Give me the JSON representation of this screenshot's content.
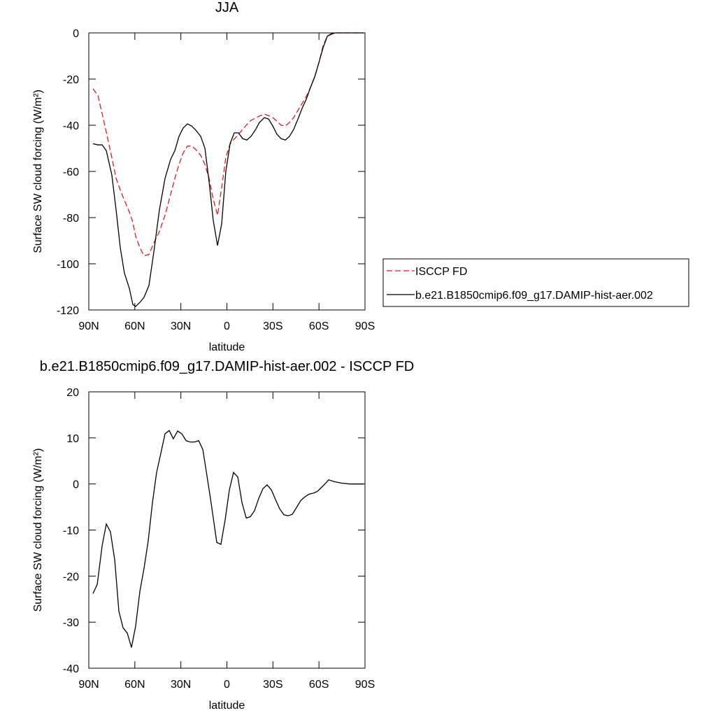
{
  "chart_data": [
    {
      "type": "line",
      "title": "JJA",
      "x_label": "latitude",
      "y_label": "Surface SW cloud forcing (W/m²)",
      "xlim": [
        90,
        -90
      ],
      "ylim": [
        -120,
        0
      ],
      "xticks": [
        {
          "value": 90,
          "label": "90N"
        },
        {
          "value": 60,
          "label": "60N"
        },
        {
          "value": 30,
          "label": "30N"
        },
        0,
        {
          "value": -30,
          "label": "30S"
        },
        {
          "value": -60,
          "label": "60S"
        },
        {
          "value": -90,
          "label": "90S"
        }
      ],
      "yticks": [
        -120,
        -100,
        -80,
        -60,
        -40,
        -20,
        0
      ],
      "legend": "right",
      "x": [
        87.3,
        84.1,
        81.3,
        78.6,
        75,
        72.2,
        69.5,
        66.8,
        63.6,
        61.3,
        59.5,
        56.7,
        54,
        50.8,
        47.6,
        44,
        40.3,
        36.7,
        33.9,
        31.2,
        28.5,
        25.7,
        23,
        20.3,
        17.1,
        14.3,
        11.6,
        8.9,
        6.1,
        3.4,
        0.7,
        -2.1,
        -4.8,
        -7.5,
        -10.3,
        -13,
        -15.7,
        -18.5,
        -21.2,
        -24.4,
        -27.1,
        -29.9,
        -32.6,
        -35.3,
        -38.1,
        -40.8,
        -43.5,
        -46.3,
        -49,
        -51.7,
        -54.5,
        -57.2,
        -59.9,
        -62.7,
        -65.4,
        -68.2,
        -70.9,
        -80,
        -89.1
      ],
      "series": [
        {
          "name": "ISCCP FD",
          "color": "#e8161b",
          "line_style": "dashed",
          "values": [
            -24.2,
            -27,
            -35,
            -43,
            -54,
            -63,
            -68,
            -72.5,
            -77.5,
            -82,
            -88,
            -93,
            -96.5,
            -96,
            -91,
            -86,
            -79,
            -70,
            -63,
            -57,
            -52,
            -49,
            -49,
            -50.5,
            -53,
            -57,
            -63,
            -72,
            -79,
            -67,
            -54,
            -48,
            -46,
            -44,
            -41.8,
            -39.7,
            -37.9,
            -37,
            -36,
            -35.2,
            -35.8,
            -36.7,
            -38.2,
            -40,
            -40.3,
            -38.8,
            -36.7,
            -33.6,
            -30.6,
            -27.6,
            -23.6,
            -19.1,
            -13,
            -5.5,
            -1.5,
            -0.6,
            0,
            0,
            0
          ]
        },
        {
          "name": "b.e21.B1850cmip6.f09_g17.DAMIP-hist-aer.002",
          "color": "#000000",
          "line_style": "solid",
          "values": [
            -48,
            -48.5,
            -48.5,
            -51,
            -61.5,
            -76.7,
            -93,
            -104,
            -110.6,
            -117.6,
            -118.5,
            -116.7,
            -114.5,
            -109.4,
            -94.8,
            -76.7,
            -63,
            -54.8,
            -51,
            -44.8,
            -41.2,
            -39.4,
            -40.3,
            -42.1,
            -44.8,
            -50,
            -64.5,
            -81.2,
            -92.1,
            -82.7,
            -60,
            -47.9,
            -43.3,
            -43.3,
            -45.8,
            -46.4,
            -44.8,
            -42.1,
            -38.8,
            -36.7,
            -37.3,
            -40.3,
            -43.9,
            -45.8,
            -46.4,
            -44.8,
            -41.8,
            -37.3,
            -32.7,
            -28.8,
            -23.6,
            -19.1,
            -13,
            -6.4,
            -1.5,
            -0.3,
            0,
            0,
            0
          ]
        }
      ]
    },
    {
      "type": "line",
      "title": "b.e21.B1850cmip6.f09_g17.DAMIP-hist-aer.002 - ISCCP FD",
      "x_label": "latitude",
      "y_label": "Surface SW cloud forcing (W/m²)",
      "xlim": [
        90,
        -90
      ],
      "ylim": [
        -40,
        20
      ],
      "xticks": [
        {
          "value": 90,
          "label": "90N"
        },
        {
          "value": 60,
          "label": "60N"
        },
        {
          "value": 30,
          "label": "30N"
        },
        0,
        {
          "value": -30,
          "label": "30S"
        },
        {
          "value": -60,
          "label": "60S"
        },
        {
          "value": -90,
          "label": "90S"
        }
      ],
      "yticks": [
        -40,
        -30,
        -20,
        -10,
        0,
        10,
        20
      ],
      "color": "#000000",
      "x": [
        87.3,
        84.5,
        81.3,
        78.6,
        75.9,
        73.1,
        70.4,
        67.7,
        64.9,
        62.2,
        59.5,
        56.7,
        54,
        51.3,
        48.5,
        45.8,
        43.1,
        40.3,
        37.6,
        34.9,
        32.1,
        29.4,
        26.6,
        23.9,
        21.2,
        18.4,
        15.7,
        13,
        10.2,
        6.6,
        3.9,
        1.1,
        -1.6,
        -4.3,
        -7.1,
        -9.8,
        -12.6,
        -15.3,
        -18,
        -20.8,
        -23.5,
        -26.2,
        -29,
        -31.7,
        -34.4,
        -37.2,
        -39.9,
        -42.6,
        -45.4,
        -48.1,
        -50.8,
        -53.6,
        -56.3,
        -59,
        -61.8,
        -64.5,
        -66.3,
        -70,
        -74.5,
        -80,
        -89.1
      ],
      "values": [
        -23.8,
        -21.8,
        -13.4,
        -8.7,
        -10.4,
        -16.5,
        -27.6,
        -31.2,
        -32.4,
        -35.5,
        -30.9,
        -23.3,
        -18.3,
        -12.4,
        -4,
        2.5,
        6.6,
        10.9,
        11.6,
        9.8,
        11.5,
        10.9,
        9.4,
        9.1,
        9.1,
        9.4,
        7.5,
        1.8,
        -4.3,
        -12.7,
        -13.1,
        -7.7,
        -1.3,
        2.5,
        1.5,
        -4,
        -7.4,
        -7.1,
        -5.8,
        -3.1,
        -1,
        -0.2,
        -1.3,
        -3.4,
        -5.4,
        -6.7,
        -6.9,
        -6.6,
        -5.1,
        -3.6,
        -2.8,
        -2.2,
        -2,
        -1.6,
        -0.7,
        0.2,
        0.9,
        0.5,
        0.2,
        0,
        0
      ]
    }
  ]
}
